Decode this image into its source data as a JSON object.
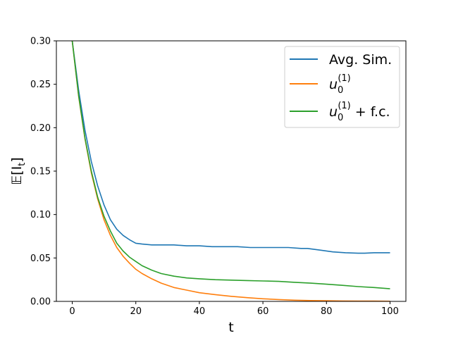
{
  "chart_data": {
    "type": "line",
    "title": "",
    "xlabel": "t",
    "ylabel": "𝔼[I_t]",
    "xlim": [
      -5,
      105
    ],
    "ylim": [
      0.0,
      0.3
    ],
    "x_ticks": [
      0,
      20,
      40,
      60,
      80,
      100
    ],
    "y_ticks": [
      0.0,
      0.05,
      0.1,
      0.15,
      0.2,
      0.25,
      0.3
    ],
    "x_tick_labels": [
      "0",
      "20",
      "40",
      "60",
      "80",
      "100"
    ],
    "y_tick_labels": [
      "0.00",
      "0.05",
      "0.10",
      "0.15",
      "0.20",
      "0.25",
      "0.30"
    ],
    "grid": false,
    "legend_position": "top-right",
    "series": [
      {
        "name": "Avg. Sim.",
        "color": "#1f77b4",
        "x": [
          0,
          2,
          4,
          6,
          8,
          10,
          12,
          14,
          16,
          18,
          20,
          22,
          25,
          28,
          32,
          36,
          40,
          44,
          48,
          52,
          56,
          60,
          64,
          68,
          72,
          74,
          78,
          82,
          86,
          90,
          92,
          95,
          100
        ],
        "y": [
          0.3,
          0.243,
          0.197,
          0.161,
          0.133,
          0.111,
          0.094,
          0.083,
          0.076,
          0.071,
          0.067,
          0.066,
          0.065,
          0.065,
          0.065,
          0.064,
          0.064,
          0.063,
          0.063,
          0.063,
          0.062,
          0.062,
          0.062,
          0.062,
          0.061,
          0.061,
          0.059,
          0.057,
          0.056,
          0.0555,
          0.0555,
          0.056,
          0.056
        ]
      },
      {
        "name": "u_0^(1)",
        "color": "#ff7f0e",
        "x": [
          0,
          2,
          4,
          6,
          8,
          10,
          12,
          14,
          16,
          18,
          20,
          22,
          25,
          28,
          32,
          36,
          40,
          45,
          50,
          55,
          60,
          65,
          70,
          75,
          80,
          85,
          90,
          95,
          100
        ],
        "y": [
          0.3,
          0.236,
          0.187,
          0.148,
          0.118,
          0.094,
          0.076,
          0.062,
          0.052,
          0.044,
          0.037,
          0.032,
          0.026,
          0.021,
          0.016,
          0.013,
          0.01,
          0.0078,
          0.0058,
          0.0043,
          0.003,
          0.0021,
          0.0014,
          0.001,
          0.0007,
          0.0005,
          0.0004,
          0.0003,
          0.0002
        ]
      },
      {
        "name": "u_0^(1) + f.c.",
        "color": "#2ca02c",
        "x": [
          0,
          2,
          4,
          6,
          8,
          10,
          12,
          14,
          16,
          18,
          20,
          22,
          25,
          28,
          32,
          36,
          40,
          45,
          50,
          55,
          60,
          65,
          70,
          75,
          80,
          85,
          90,
          95,
          100
        ],
        "y": [
          0.3,
          0.237,
          0.188,
          0.15,
          0.12,
          0.098,
          0.081,
          0.067,
          0.058,
          0.051,
          0.046,
          0.041,
          0.036,
          0.032,
          0.029,
          0.027,
          0.026,
          0.025,
          0.0245,
          0.024,
          0.0235,
          0.023,
          0.022,
          0.021,
          0.0198,
          0.0185,
          0.017,
          0.016,
          0.0145
        ]
      }
    ]
  },
  "legend": {
    "items": [
      {
        "main": "Avg. Sim.",
        "sub": "",
        "sup": "",
        "rest": ""
      },
      {
        "main": "u",
        "sub": "0",
        "sup": "(1)",
        "rest": ""
      },
      {
        "main": "u",
        "sub": "0",
        "sup": "(1)",
        "rest": " + f.c."
      }
    ]
  },
  "labels": {
    "xlabel": "t",
    "ylabel_main": "𝔼[I",
    "ylabel_sub": "t",
    "ylabel_close": "]"
  }
}
